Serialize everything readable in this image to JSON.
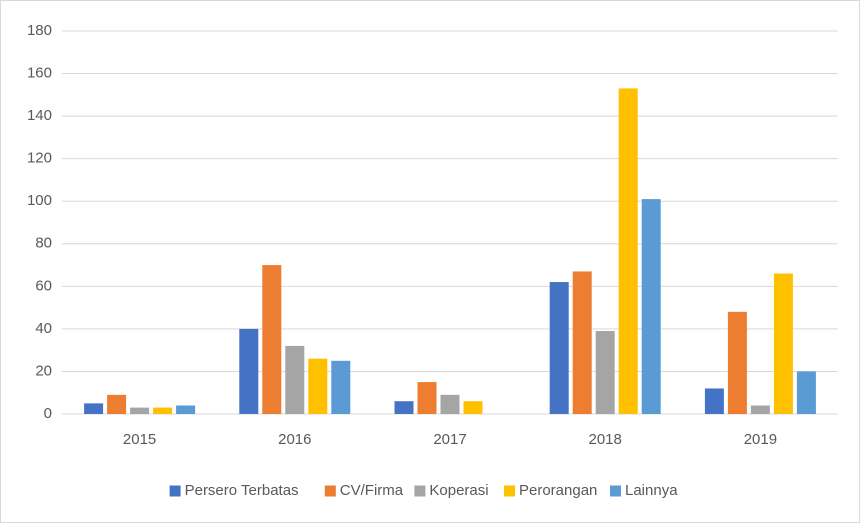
{
  "chart_data": {
    "type": "bar",
    "categories": [
      "2015",
      "2016",
      "2017",
      "2018",
      "2019"
    ],
    "series": [
      {
        "name": "Persero Terbatas",
        "color": "#4472c4",
        "values": [
          5,
          40,
          6,
          62,
          12
        ]
      },
      {
        "name": "CV/Firma",
        "color": "#ed7d31",
        "values": [
          9,
          70,
          15,
          67,
          48
        ]
      },
      {
        "name": "Koperasi",
        "color": "#a5a5a5",
        "values": [
          3,
          32,
          9,
          39,
          4
        ]
      },
      {
        "name": "Perorangan",
        "color": "#ffc000",
        "values": [
          3,
          26,
          6,
          153,
          66
        ]
      },
      {
        "name": "Lainnya",
        "color": "#5b9bd5",
        "values": [
          4,
          25,
          0,
          101,
          20
        ]
      }
    ],
    "ylim": [
      0,
      180
    ],
    "yticks": [
      0,
      20,
      40,
      60,
      80,
      100,
      120,
      140,
      160,
      180
    ],
    "grid": true,
    "legend": "bottom"
  }
}
